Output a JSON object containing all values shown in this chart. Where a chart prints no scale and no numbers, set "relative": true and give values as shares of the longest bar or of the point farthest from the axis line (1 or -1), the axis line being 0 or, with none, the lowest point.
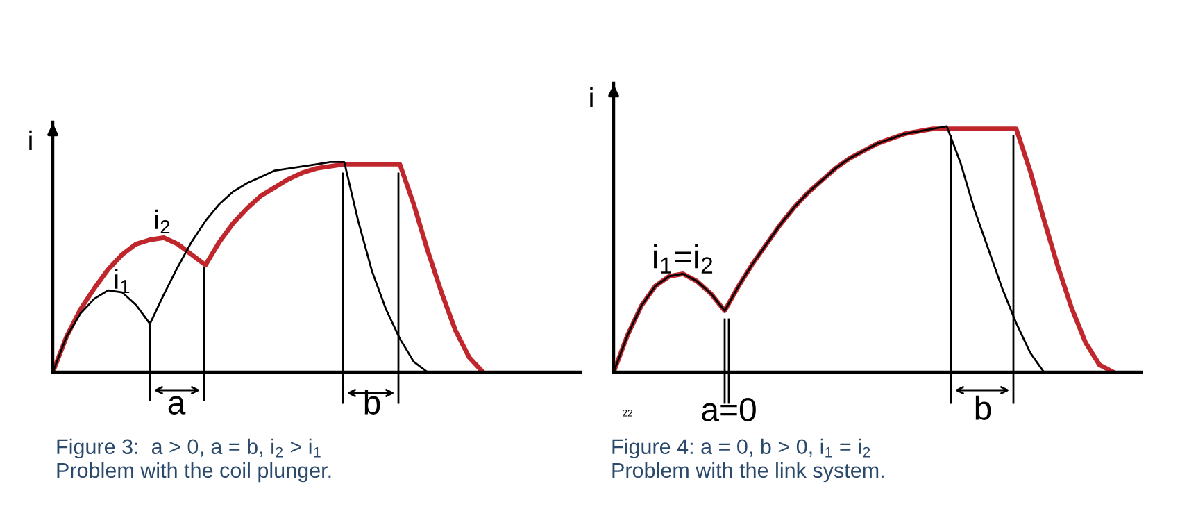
{
  "chart_data": [
    {
      "type": "line",
      "ylabel": "i",
      "relative": true,
      "categories": [
        null,
        null,
        null,
        null,
        null,
        null,
        null,
        null,
        null,
        null,
        null,
        null,
        null,
        null,
        null,
        null,
        null,
        null,
        null,
        null,
        null,
        null,
        null,
        null,
        null,
        null,
        null,
        null,
        null,
        null,
        null,
        null,
        null,
        null,
        null,
        null,
        null,
        null,
        null
      ],
      "series": [
        {
          "name": "i$_{1}$",
          "color": "#000000",
          "values": [
            0,
            0.17,
            0.28,
            0.35,
            0.39,
            0.38,
            0.32,
            0.23,
            0.37,
            0.5,
            0.62,
            0.72,
            0.8,
            0.86,
            0.9,
            0.93,
            0.96,
            0.97,
            0.98,
            0.99,
            1.0,
            1.0,
            0.72,
            0.48,
            0.3,
            0.16,
            0.05,
            0,
            null,
            null,
            null,
            null,
            null,
            null,
            null,
            null,
            null,
            null,
            null
          ]
        },
        {
          "name": "i$_{2}$",
          "color": "#c0272d",
          "values": [
            0,
            0.17,
            0.3,
            0.4,
            0.49,
            0.56,
            0.61,
            0.63,
            0.64,
            0.61,
            0.56,
            0.51,
            0.62,
            0.71,
            0.78,
            0.84,
            0.88,
            0.92,
            0.95,
            0.97,
            0.98,
            0.99,
            0.99,
            0.99,
            0.99,
            0.99,
            0.8,
            0.58,
            0.38,
            0.2,
            0.07,
            0,
            null,
            null,
            null,
            null,
            null,
            null,
            null
          ]
        }
      ],
      "annotations": [
        "a",
        "b",
        "Figure 3:  a > 0, a = b, i$_{2}$ > i$_{1}$",
        "Problem with the coil plunger."
      ]
    },
    {
      "type": "line",
      "ylabel": "i",
      "relative": true,
      "categories": [
        null,
        null,
        null,
        null,
        null,
        null,
        null,
        null,
        null,
        null,
        null,
        null,
        null,
        null,
        null,
        null,
        null,
        null,
        null,
        null,
        null,
        null,
        null,
        null,
        null,
        null,
        null,
        null,
        null,
        null,
        null,
        null,
        null,
        null,
        null,
        null,
        null,
        null,
        null
      ],
      "series": [
        {
          "color": "#000000",
          "values": [
            0,
            0.15,
            0.27,
            0.35,
            0.39,
            0.4,
            0.37,
            0.32,
            0.25,
            0.35,
            0.44,
            0.52,
            0.6,
            0.67,
            0.73,
            0.78,
            0.83,
            0.87,
            0.9,
            0.93,
            0.95,
            0.97,
            0.98,
            0.99,
            1.0,
            0.85,
            0.66,
            0.5,
            0.34,
            0.2,
            0.08,
            0,
            null,
            null,
            null,
            null,
            null,
            null,
            null
          ]
        },
        {
          "color": "#c0272d",
          "values": [
            0,
            0.15,
            0.27,
            0.35,
            0.39,
            0.4,
            0.37,
            0.32,
            0.25,
            0.35,
            0.44,
            0.52,
            0.6,
            0.67,
            0.73,
            0.78,
            0.83,
            0.87,
            0.9,
            0.93,
            0.95,
            0.97,
            0.98,
            0.99,
            0.99,
            0.99,
            0.99,
            0.99,
            0.99,
            0.99,
            0.82,
            0.62,
            0.43,
            0.26,
            0.12,
            0.03,
            0,
            null,
            null
          ]
        }
      ],
      "annotations": [
        "i$_{1}$=i$_{2}$",
        "a=0",
        "b",
        "22",
        "Figure 4: a = 0, b > 0, i$_{1}$ = i$_{2}$",
        "Problem with the link system."
      ]
    }
  ]
}
